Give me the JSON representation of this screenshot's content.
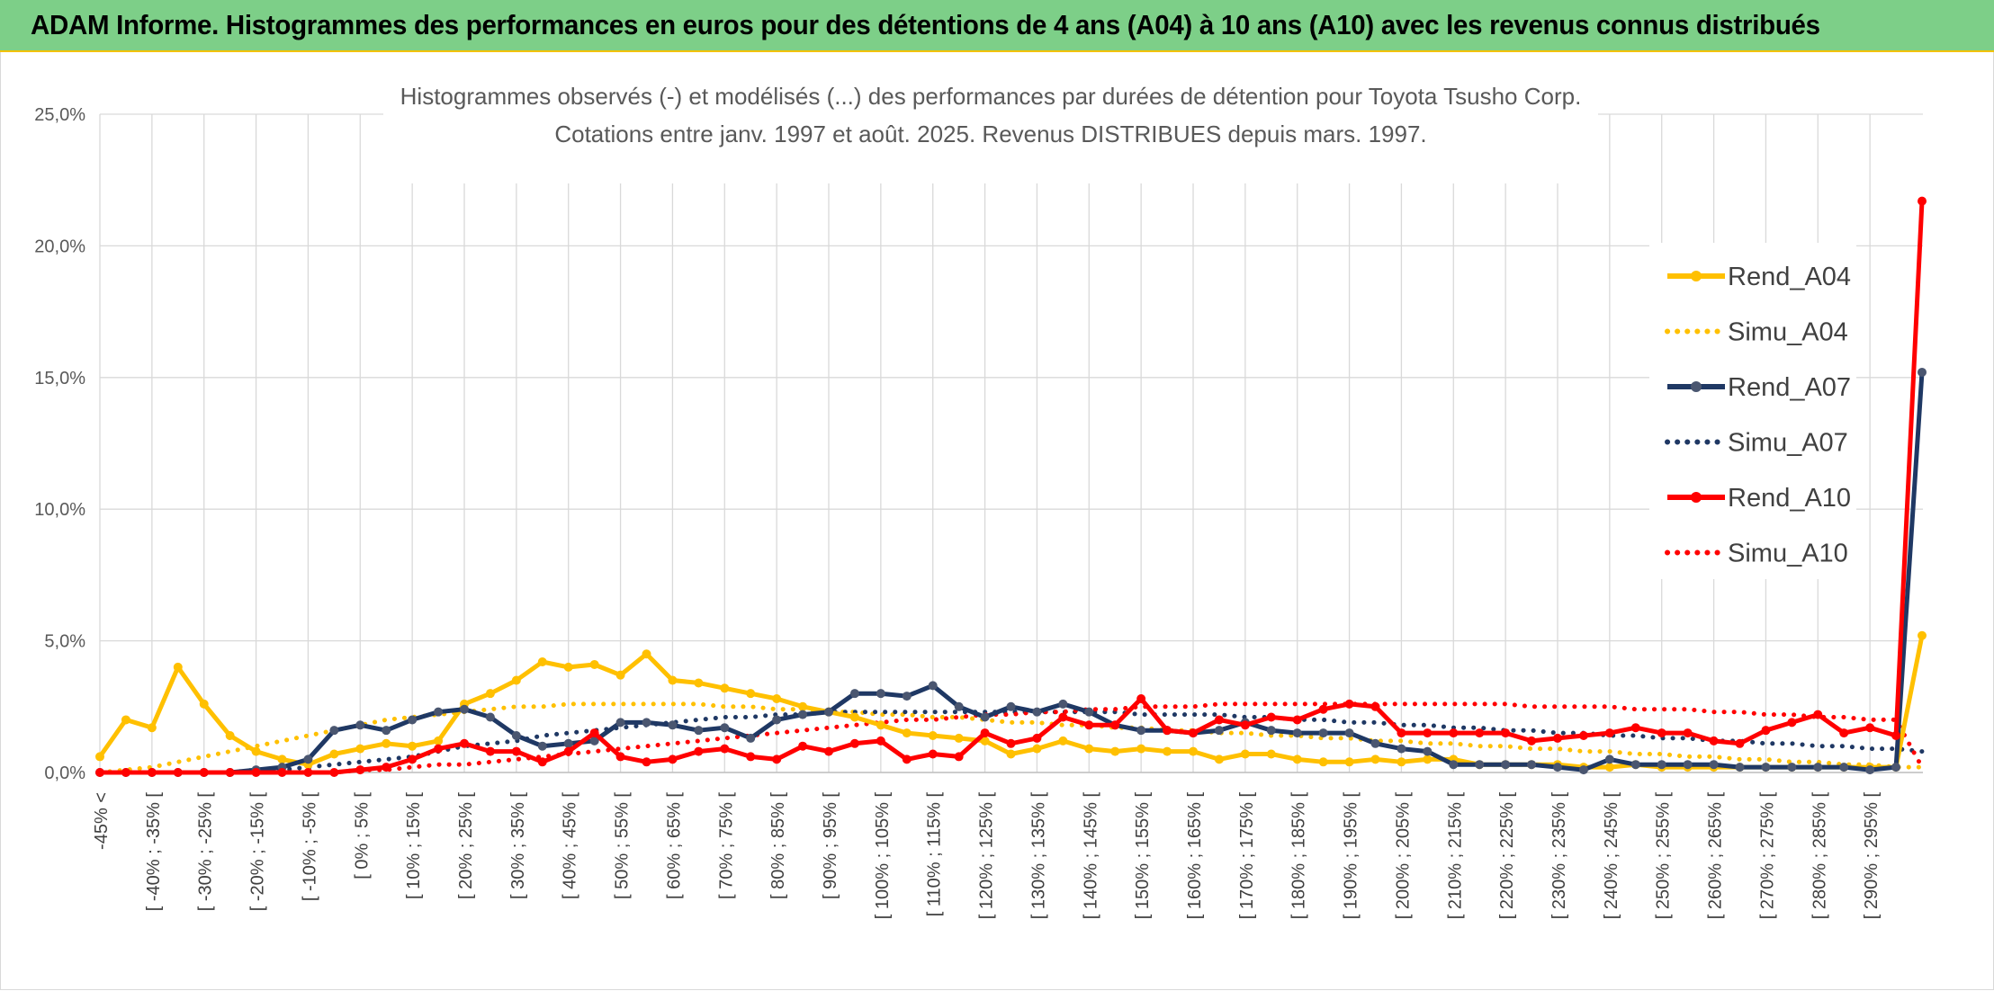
{
  "header": {
    "title": "ADAM Informe. Histogrammes des performances en euros pour des détentions de 4 ans (A04) à 10 ans (A10) avec les revenus connus distribués"
  },
  "colors": {
    "banner": "#7dcf88",
    "banner_border": "#f2c200",
    "A04": "#ffc000",
    "A07": "#1f3864",
    "A07_marker": "#4a5670",
    "A10": "#ff0000",
    "grid": "#d9d9d9"
  },
  "chart_data": {
    "type": "line",
    "title": "Histogrammes observés (-) et modélisés (...) des performances par durées de détention pour Toyota Tsusho Corp.",
    "subtitle": "Cotations entre janv. 1997 et août. 2025. Revenus DISTRIBUES depuis mars. 1997.",
    "xlabel": "",
    "ylabel": "",
    "ylim": [
      0,
      25
    ],
    "y_ticks": [
      "0,0%",
      "5,0%",
      "10,0%",
      "15,0%",
      "20,0%",
      "25,0%"
    ],
    "grid": true,
    "legend_position": "right",
    "x_tick_labels": [
      "-45% <",
      "[ -40% ; -35% [",
      "[ -30% ; -25% [",
      "[ -20% ; -15% [",
      "[ -10% ; -5% [",
      "[ 0% ; 5% [",
      "[ 10% ; 15% [",
      "[ 20% ; 25% [",
      "[ 30% ; 35% [",
      "[ 40% ; 45% [",
      "[ 50% ; 55% [",
      "[ 60% ; 65% [",
      "[ 70% ; 75% [",
      "[ 80% ; 85% [",
      "[ 90% ; 95% [",
      "[ 100% ; 105% [",
      "[ 110% ; 115% [",
      "[ 120% ; 125% [",
      "[ 130% ; 135% [",
      "[ 140% ; 145% [",
      "[ 150% ; 155% [",
      "[ 160% ; 165% [",
      "[ 170% ; 175% [",
      "[ 180% ; 185% [",
      "[ 190% ; 195% [",
      "[ 200% ; 205% [",
      "[ 210% ; 215% [",
      "[ 220% ; 225% [",
      "[ 230% ; 235% [",
      "[ 240% ; 245% [",
      "[ 250% ; 255% [",
      "[ 260% ; 265% [",
      "[ 270% ; 275% [",
      "[ 280% ; 285% [",
      "[ 290% ; 295% ["
    ],
    "series": [
      {
        "name": "Rend_A04",
        "style": "solid",
        "color": "#ffc000",
        "values": [
          0.6,
          2.0,
          1.7,
          4.0,
          2.6,
          1.4,
          0.8,
          0.5,
          0.3,
          0.7,
          0.9,
          1.1,
          1.0,
          1.2,
          2.6,
          3.0,
          3.5,
          4.2,
          4.0,
          4.1,
          3.7,
          4.5,
          3.5,
          3.4,
          3.2,
          3.0,
          2.8,
          2.5,
          2.3,
          2.1,
          1.8,
          1.5,
          1.4,
          1.3,
          1.2,
          0.7,
          0.9,
          1.2,
          0.9,
          0.8,
          0.9,
          0.8,
          0.8,
          0.5,
          0.7,
          0.7,
          0.5,
          0.4,
          0.4,
          0.5,
          0.4,
          0.5,
          0.5,
          0.3,
          0.3,
          0.3,
          0.3,
          0.2,
          0.2,
          0.3,
          0.2,
          0.2,
          0.2,
          0.2,
          0.2,
          0.2,
          0.2,
          0.2,
          0.2,
          0.2,
          5.2
        ]
      },
      {
        "name": "Simu_A04",
        "style": "dotted",
        "color": "#ffc000",
        "values": [
          0.0,
          0.1,
          0.2,
          0.4,
          0.6,
          0.8,
          1.0,
          1.2,
          1.4,
          1.6,
          1.8,
          2.0,
          2.1,
          2.2,
          2.3,
          2.4,
          2.5,
          2.5,
          2.6,
          2.6,
          2.6,
          2.6,
          2.6,
          2.6,
          2.5,
          2.5,
          2.4,
          2.4,
          2.3,
          2.3,
          2.2,
          2.2,
          2.1,
          2.1,
          2.0,
          1.9,
          1.9,
          1.8,
          1.8,
          1.7,
          1.7,
          1.6,
          1.6,
          1.5,
          1.5,
          1.4,
          1.4,
          1.3,
          1.3,
          1.2,
          1.2,
          1.1,
          1.1,
          1.0,
          1.0,
          0.9,
          0.9,
          0.8,
          0.8,
          0.7,
          0.7,
          0.6,
          0.6,
          0.5,
          0.5,
          0.4,
          0.4,
          0.3,
          0.3,
          0.2,
          0.2
        ]
      },
      {
        "name": "Rend_A07",
        "style": "solid",
        "color": "#1f3864",
        "values": [
          0.0,
          0.0,
          0.0,
          0.0,
          0.0,
          0.0,
          0.1,
          0.2,
          0.5,
          1.6,
          1.8,
          1.6,
          2.0,
          2.3,
          2.4,
          2.1,
          1.4,
          1.0,
          1.1,
          1.2,
          1.9,
          1.9,
          1.8,
          1.6,
          1.7,
          1.3,
          2.0,
          2.2,
          2.3,
          3.0,
          3.0,
          2.9,
          3.3,
          2.5,
          2.1,
          2.5,
          2.3,
          2.6,
          2.3,
          1.8,
          1.6,
          1.6,
          1.5,
          1.6,
          1.9,
          1.6,
          1.5,
          1.5,
          1.5,
          1.1,
          0.9,
          0.8,
          0.3,
          0.3,
          0.3,
          0.3,
          0.2,
          0.1,
          0.5,
          0.3,
          0.3,
          0.3,
          0.3,
          0.2,
          0.2,
          0.2,
          0.2,
          0.2,
          0.1,
          0.2,
          15.2
        ]
      },
      {
        "name": "Simu_A07",
        "style": "dotted",
        "color": "#1f3864",
        "values": [
          0.0,
          0.0,
          0.0,
          0.0,
          0.0,
          0.0,
          0.1,
          0.1,
          0.2,
          0.3,
          0.4,
          0.5,
          0.6,
          0.8,
          1.0,
          1.1,
          1.2,
          1.4,
          1.5,
          1.6,
          1.7,
          1.8,
          1.9,
          2.0,
          2.1,
          2.1,
          2.2,
          2.2,
          2.3,
          2.3,
          2.3,
          2.3,
          2.3,
          2.3,
          2.3,
          2.3,
          2.3,
          2.3,
          2.3,
          2.3,
          2.2,
          2.2,
          2.2,
          2.2,
          2.1,
          2.1,
          2.0,
          2.0,
          1.9,
          1.9,
          1.8,
          1.8,
          1.7,
          1.7,
          1.6,
          1.6,
          1.5,
          1.5,
          1.4,
          1.4,
          1.3,
          1.3,
          1.2,
          1.2,
          1.1,
          1.1,
          1.0,
          1.0,
          0.9,
          0.9,
          0.8
        ]
      },
      {
        "name": "Rend_A10",
        "style": "solid",
        "color": "#ff0000",
        "values": [
          0.0,
          0.0,
          0.0,
          0.0,
          0.0,
          0.0,
          0.0,
          0.0,
          0.0,
          0.0,
          0.1,
          0.2,
          0.5,
          0.9,
          1.1,
          0.8,
          0.8,
          0.4,
          0.8,
          1.5,
          0.6,
          0.4,
          0.5,
          0.8,
          0.9,
          0.6,
          0.5,
          1.0,
          0.8,
          1.1,
          1.2,
          0.5,
          0.7,
          0.6,
          1.5,
          1.1,
          1.3,
          2.1,
          1.8,
          1.8,
          2.8,
          1.6,
          1.5,
          2.0,
          1.8,
          2.1,
          2.0,
          2.4,
          2.6,
          2.5,
          1.5,
          1.5,
          1.5,
          1.5,
          1.5,
          1.2,
          1.3,
          1.4,
          1.5,
          1.7,
          1.5,
          1.5,
          1.2,
          1.1,
          1.6,
          1.9,
          2.2,
          1.5,
          1.7,
          1.4,
          21.7
        ]
      },
      {
        "name": "Simu_A10",
        "style": "dotted",
        "color": "#ff0000",
        "values": [
          0.0,
          0.0,
          0.0,
          0.0,
          0.0,
          0.0,
          0.0,
          0.0,
          0.0,
          0.0,
          0.1,
          0.1,
          0.2,
          0.3,
          0.3,
          0.4,
          0.5,
          0.6,
          0.7,
          0.8,
          0.9,
          1.0,
          1.1,
          1.2,
          1.3,
          1.4,
          1.5,
          1.6,
          1.7,
          1.8,
          1.9,
          2.0,
          2.0,
          2.1,
          2.2,
          2.2,
          2.3,
          2.3,
          2.4,
          2.4,
          2.5,
          2.5,
          2.5,
          2.6,
          2.6,
          2.6,
          2.6,
          2.6,
          2.6,
          2.6,
          2.6,
          2.6,
          2.6,
          2.6,
          2.6,
          2.5,
          2.5,
          2.5,
          2.5,
          2.4,
          2.4,
          2.4,
          2.3,
          2.3,
          2.2,
          2.2,
          2.1,
          2.1,
          2.0,
          2.0,
          0.2
        ]
      }
    ]
  }
}
